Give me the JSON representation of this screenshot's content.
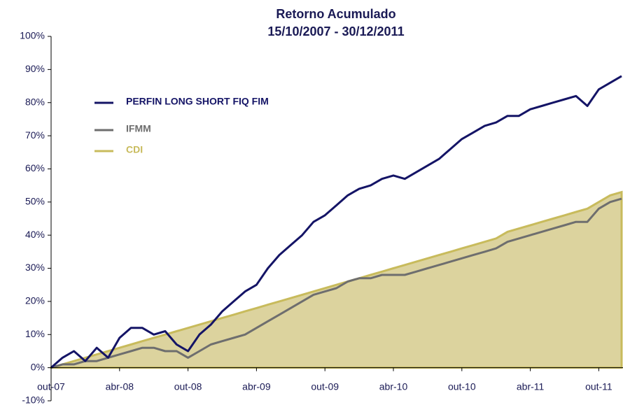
{
  "chart_data": {
    "type": "line",
    "title": "Retorno Acumulado",
    "subtitle": "15/10/2007 - 30/12/2011",
    "categories": [
      "out-07",
      null,
      null,
      null,
      null,
      null,
      "abr-08",
      null,
      null,
      null,
      null,
      null,
      "out-08",
      null,
      null,
      null,
      null,
      null,
      "abr-09",
      null,
      null,
      null,
      null,
      null,
      "out-09",
      null,
      null,
      null,
      null,
      null,
      "abr-10",
      null,
      null,
      null,
      null,
      null,
      "out-10",
      null,
      null,
      null,
      null,
      null,
      "abr-11",
      null,
      null,
      null,
      null,
      null,
      "out-11",
      null,
      null
    ],
    "series": [
      {
        "name": "PERFIN LONG SHORT FIQ FIM",
        "color": "#141466",
        "style": "line",
        "values": [
          0,
          3,
          5,
          2,
          6,
          3,
          9,
          12,
          12,
          10,
          11,
          7,
          5,
          10,
          13,
          17,
          20,
          23,
          25,
          30,
          34,
          37,
          40,
          44,
          46,
          49,
          52,
          54,
          55,
          57,
          58,
          57,
          59,
          61,
          63,
          66,
          69,
          71,
          73,
          74,
          76,
          76,
          78,
          79,
          80,
          81,
          82,
          79,
          84,
          86,
          88
        ]
      },
      {
        "name": "IFMM",
        "color": "#6e6e6e",
        "style": "line",
        "values": [
          0,
          1,
          1,
          2,
          2,
          3,
          4,
          5,
          6,
          6,
          5,
          5,
          3,
          5,
          7,
          8,
          9,
          10,
          12,
          14,
          16,
          18,
          20,
          22,
          23,
          24,
          26,
          27,
          27,
          28,
          28,
          28,
          29,
          30,
          31,
          32,
          33,
          34,
          35,
          36,
          38,
          39,
          40,
          41,
          42,
          43,
          44,
          44,
          48,
          50,
          51
        ]
      },
      {
        "name": "CDI",
        "color": "#c8bb5c",
        "style": "area",
        "values": [
          0,
          1,
          2,
          3,
          4,
          5,
          6,
          7,
          8,
          9,
          10,
          11,
          12,
          13,
          14,
          15,
          16,
          17,
          18,
          19,
          20,
          21,
          22,
          23,
          24,
          25,
          26,
          27,
          28,
          29,
          30,
          31,
          32,
          33,
          34,
          35,
          36,
          37,
          38,
          39,
          41,
          42,
          43,
          44,
          45,
          46,
          47,
          48,
          50,
          52,
          53
        ]
      }
    ],
    "ylim": [
      -10,
      100
    ],
    "yticks": [
      {
        "value": -10,
        "label": "-10%"
      },
      {
        "value": 0,
        "label": "0%"
      },
      {
        "value": 10,
        "label": "10%"
      },
      {
        "value": 20,
        "label": "20%"
      },
      {
        "value": 30,
        "label": "30%"
      },
      {
        "value": 40,
        "label": "40%"
      },
      {
        "value": 50,
        "label": "50%"
      },
      {
        "value": 60,
        "label": "60%"
      },
      {
        "value": 70,
        "label": "70%"
      },
      {
        "value": 80,
        "label": "80%"
      },
      {
        "value": 90,
        "label": "90%"
      },
      {
        "value": 100,
        "label": "100%"
      }
    ]
  }
}
